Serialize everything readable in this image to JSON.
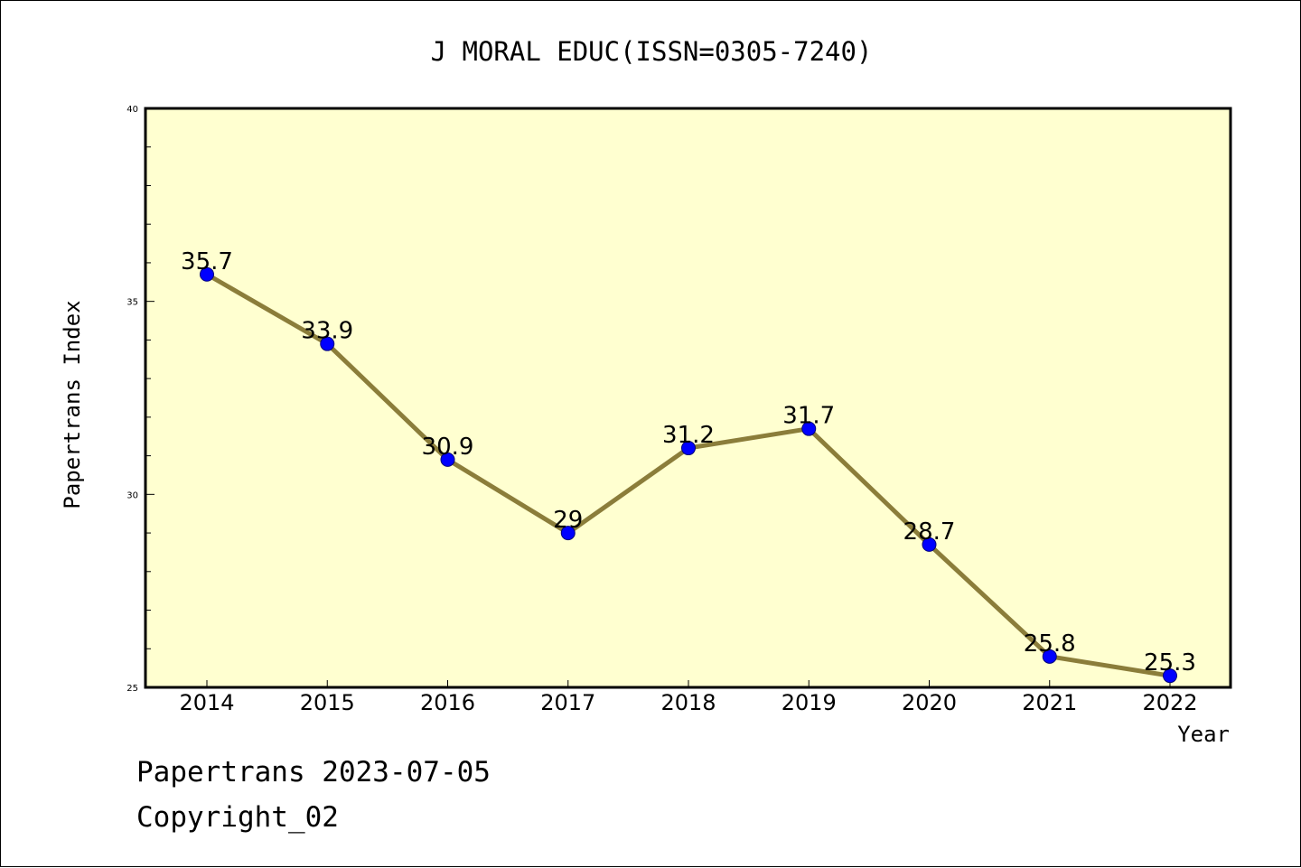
{
  "chart_data": {
    "type": "line",
    "title": "J MORAL EDUC(ISSN=0305-7240)",
    "xlabel": "Year",
    "ylabel": "Papertrans Index",
    "ylim": [
      25,
      40
    ],
    "yticks": [
      "25",
      "30",
      "35",
      "40"
    ],
    "categories": [
      "2014",
      "2015",
      "2016",
      "2017",
      "2018",
      "2019",
      "2020",
      "2021",
      "2022"
    ],
    "series": [
      {
        "values": [
          35.7,
          33.9,
          30.9,
          29,
          31.2,
          31.7,
          28.7,
          25.8,
          25.3
        ],
        "labels": [
          "35.7",
          "33.9",
          "30.9",
          "29",
          "31.2",
          "31.7",
          "28.7",
          "25.8",
          "25.3"
        ]
      }
    ],
    "colors": {
      "plot_bg": "#ffffd0",
      "line": "#8b7d3a",
      "marker": "#0000ff"
    },
    "grid": false
  },
  "footer": {
    "line1": "Papertrans 2023-07-05",
    "line2": "Copyright_02"
  }
}
